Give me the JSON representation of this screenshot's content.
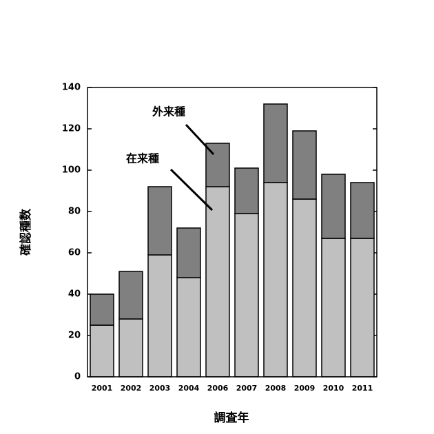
{
  "chart_data": {
    "type": "stacked_bar",
    "x_label": "調査年",
    "y_label": "確認種数",
    "categories": [
      "2001",
      "2002",
      "2003",
      "2004",
      "2006",
      "2007",
      "2008",
      "2009",
      "2010",
      "2011"
    ],
    "series": [
      {
        "name": "在来種",
        "color": "#c0c0c0",
        "values": [
          25,
          28,
          59,
          48,
          92,
          79,
          94,
          86,
          67,
          67
        ]
      },
      {
        "name": "外来種",
        "color": "#808080",
        "values": [
          15,
          23,
          33,
          24,
          21,
          22,
          38,
          33,
          31,
          27
        ]
      }
    ],
    "ylim": [
      0,
      140
    ],
    "yticks": [
      0,
      20,
      40,
      60,
      80,
      100,
      120,
      140
    ]
  }
}
